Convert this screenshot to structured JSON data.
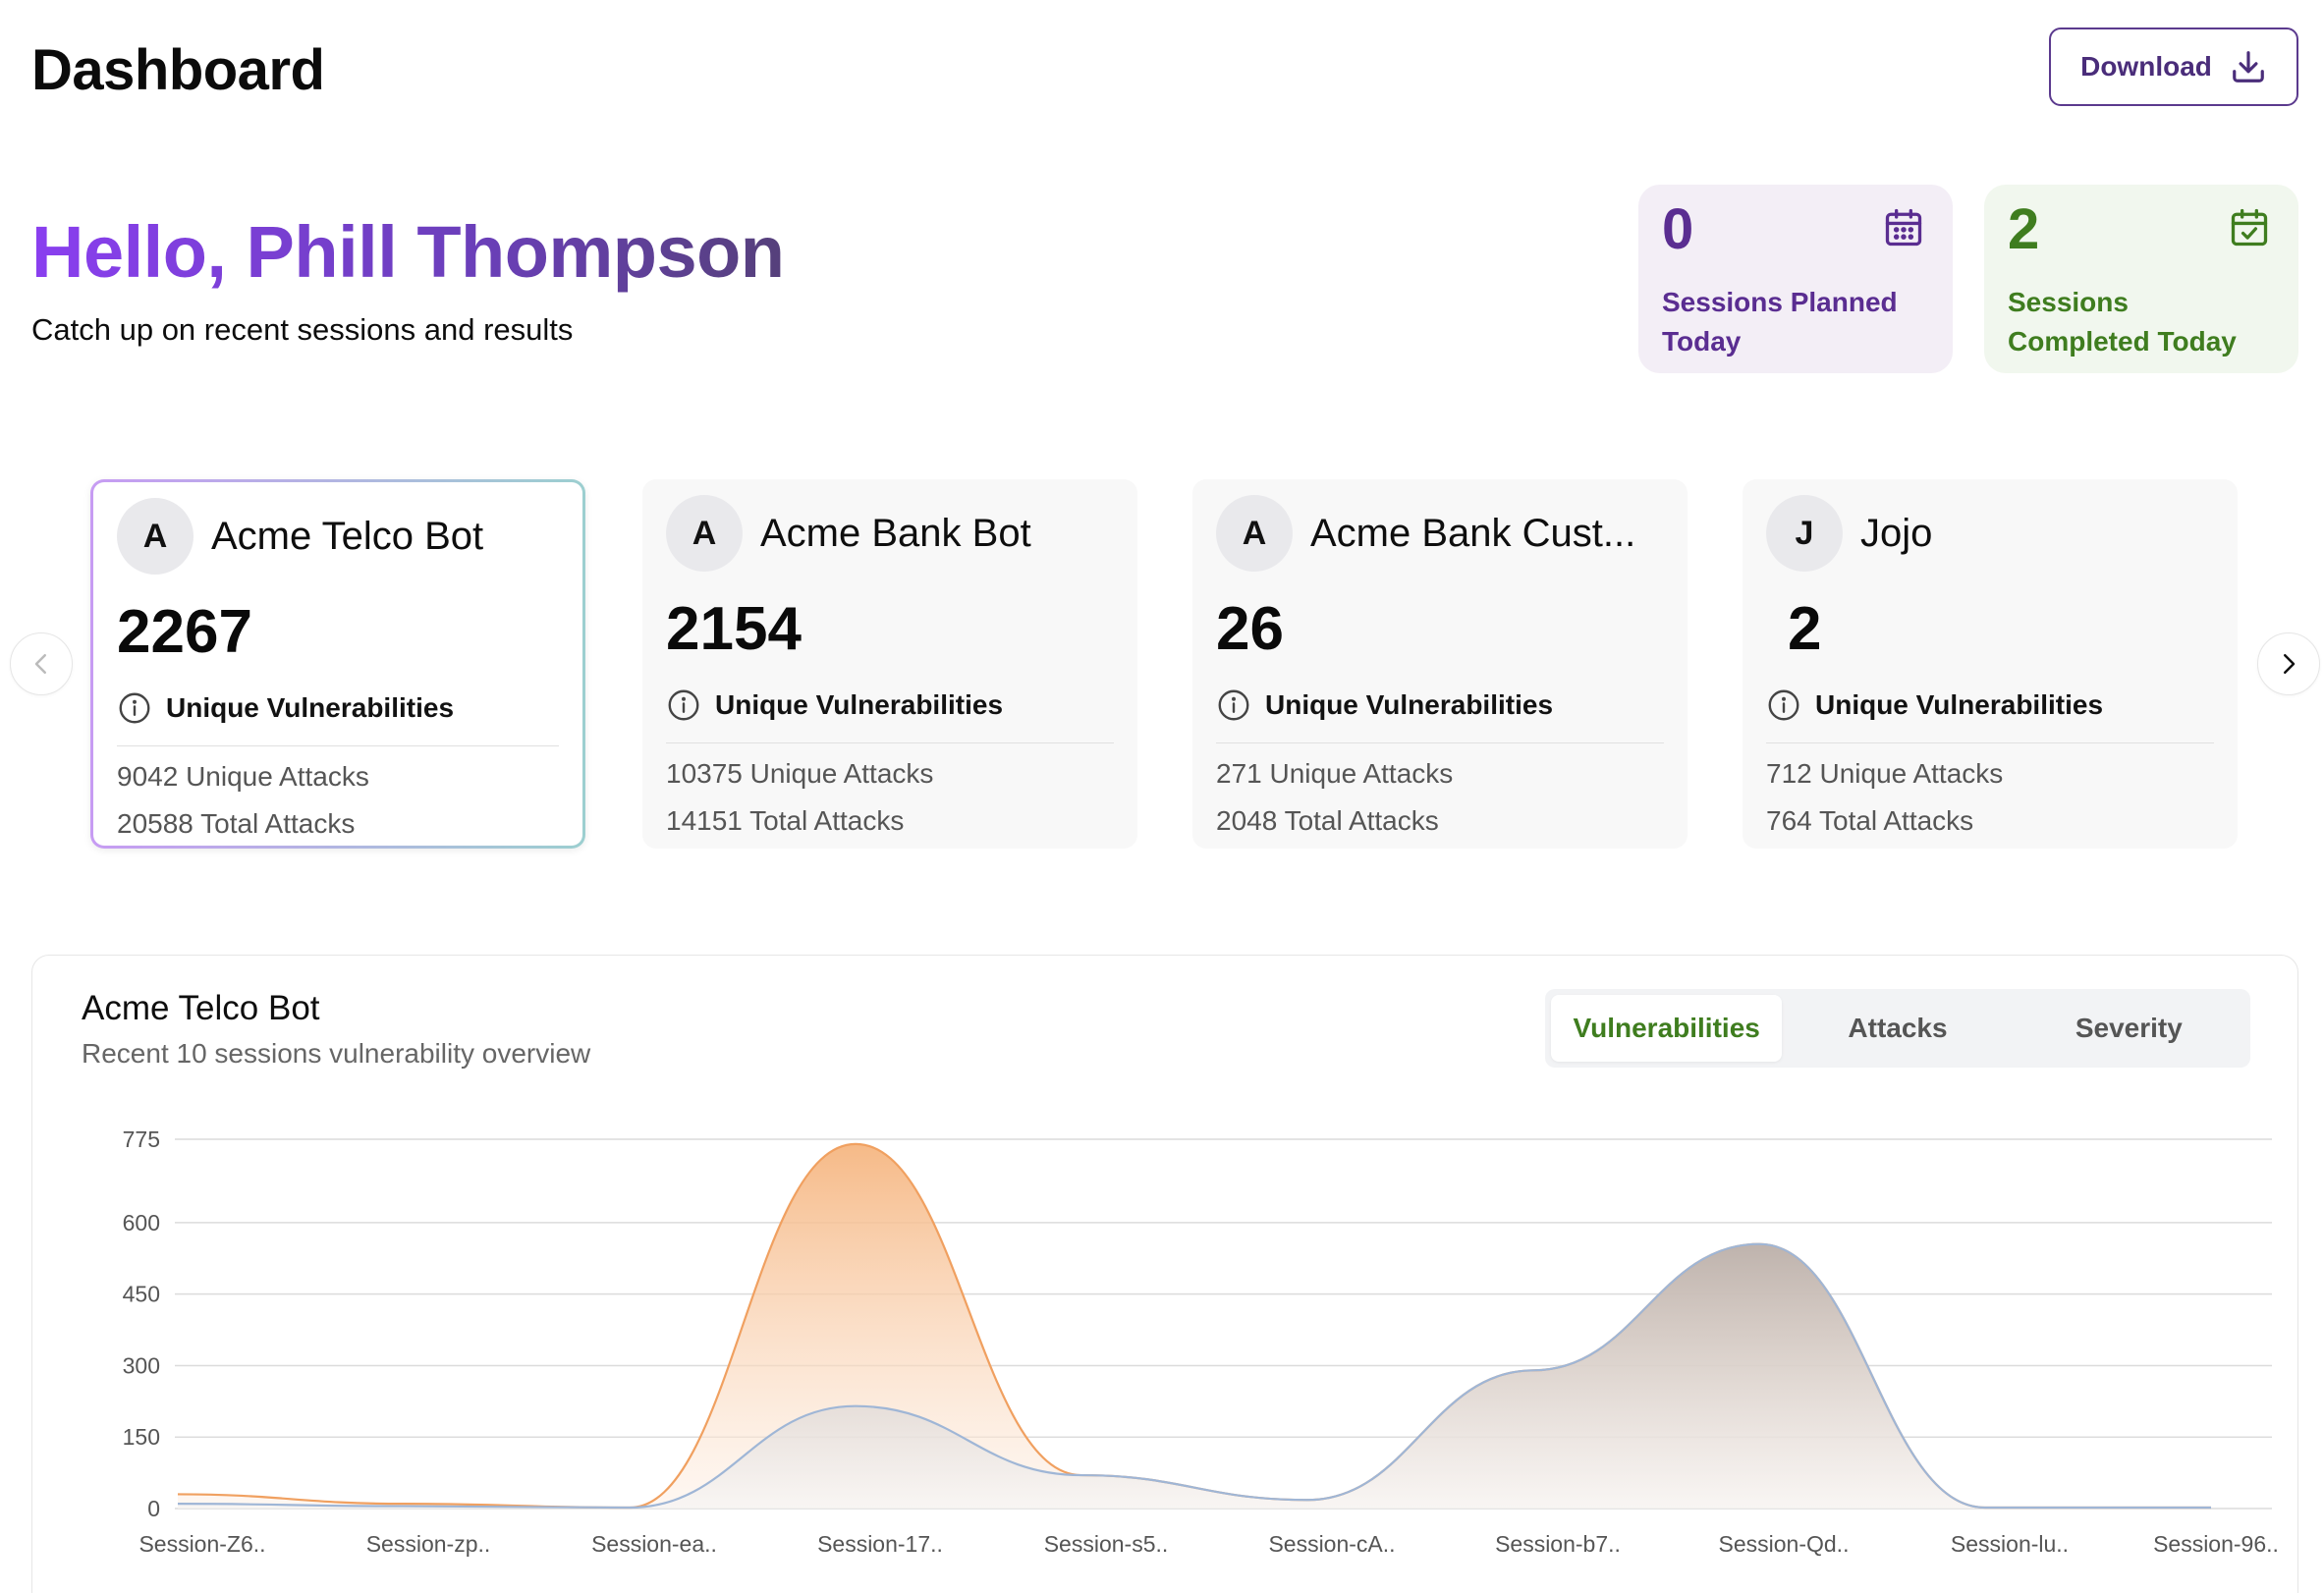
{
  "header": {
    "title": "Dashboard",
    "download_label": "Download"
  },
  "greeting": {
    "hello": "Hello, Phill Thompson",
    "subtitle": "Catch up on recent sessions and results"
  },
  "stats": {
    "planned": {
      "value": "0",
      "label": "Sessions Planned Today",
      "color": "#5a2d91",
      "icon": "calendar-icon"
    },
    "completed": {
      "value": "2",
      "label": "Sessions Completed Today",
      "color": "#3f7d1f",
      "icon": "calendar-check-icon"
    }
  },
  "bots": [
    {
      "initial": "A",
      "name": "Acme Telco Bot",
      "count": "2267",
      "vuln_label": "Unique Vulnerabilities",
      "unique_attacks": "9042 Unique Attacks",
      "total_attacks": "20588 Total Attacks",
      "selected": true
    },
    {
      "initial": "A",
      "name": "Acme Bank Bot",
      "count": "2154",
      "vuln_label": "Unique Vulnerabilities",
      "unique_attacks": "10375 Unique Attacks",
      "total_attacks": "14151 Total Attacks",
      "selected": false
    },
    {
      "initial": "A",
      "name": "Acme Bank Cust...",
      "count": "26",
      "vuln_label": "Unique Vulnerabilities",
      "unique_attacks": "271 Unique Attacks",
      "total_attacks": "2048 Total Attacks",
      "selected": false
    },
    {
      "initial": "J",
      "name": "Jojo",
      "count": "2",
      "vuln_label": "Unique Vulnerabilities",
      "unique_attacks": "712 Unique Attacks",
      "total_attacks": "764 Total Attacks",
      "selected": false
    }
  ],
  "chart_panel": {
    "title": "Acme Telco Bot",
    "subtitle": "Recent 10 sessions vulnerability overview",
    "tabs": [
      "Vulnerabilities",
      "Attacks",
      "Severity"
    ],
    "active_tab": "Vulnerabilities"
  },
  "chart_data": {
    "type": "area",
    "categories": [
      "Session-Z6..",
      "Session-zp..",
      "Session-ea..",
      "Session-17..",
      "Session-s5..",
      "Session-cA..",
      "Session-b7..",
      "Session-Qd..",
      "Session-lu..",
      "Session-96.."
    ],
    "series": [
      {
        "values": [
          30,
          10,
          2,
          765,
          70,
          18,
          290,
          555,
          2,
          2
        ],
        "color": "#f0a060"
      },
      {
        "values": [
          10,
          5,
          2,
          215,
          70,
          18,
          290,
          555,
          2,
          2
        ],
        "color": "#9fb6d6"
      }
    ],
    "yticks": [
      0,
      150,
      300,
      450,
      600,
      775
    ],
    "ylim": [
      0,
      775
    ],
    "grid": true
  }
}
